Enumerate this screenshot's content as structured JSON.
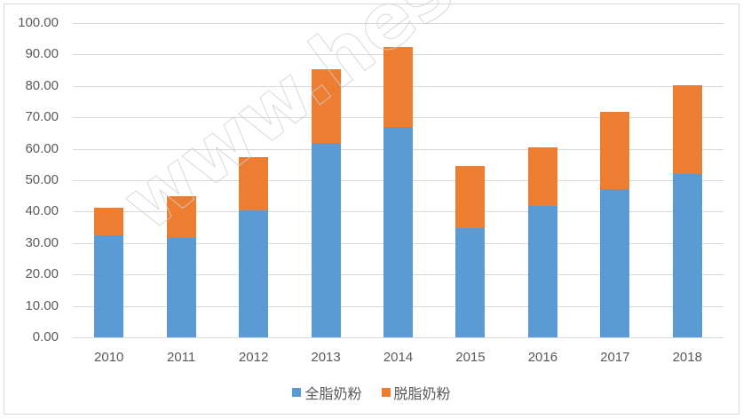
{
  "chart_data": {
    "type": "bar",
    "stacked": true,
    "title": "",
    "xlabel": "",
    "ylabel": "",
    "ylim": [
      0,
      100
    ],
    "yticks": [
      "0.00",
      "10.00",
      "20.00",
      "30.00",
      "40.00",
      "50.00",
      "60.00",
      "70.00",
      "80.00",
      "90.00",
      "100.00"
    ],
    "categories": [
      "2010",
      "2011",
      "2012",
      "2013",
      "2014",
      "2015",
      "2016",
      "2017",
      "2018"
    ],
    "series": [
      {
        "name": "全脂奶粉",
        "color": "#5b9bd5",
        "values": [
          32.5,
          31.6,
          40.3,
          61.9,
          66.9,
          34.7,
          41.9,
          47.1,
          52.1
        ]
      },
      {
        "name": "脱脂奶粉",
        "color": "#ed7d31",
        "values": [
          8.7,
          13.3,
          17.0,
          23.4,
          25.4,
          19.8,
          18.5,
          24.7,
          28.1
        ]
      }
    ],
    "totals": [
      41.2,
      44.9,
      57.3,
      85.3,
      92.3,
      54.5,
      60.4,
      71.8,
      80.2
    ],
    "grid": true,
    "legend_position": "bottom"
  },
  "watermark": "www.hesitan.com"
}
